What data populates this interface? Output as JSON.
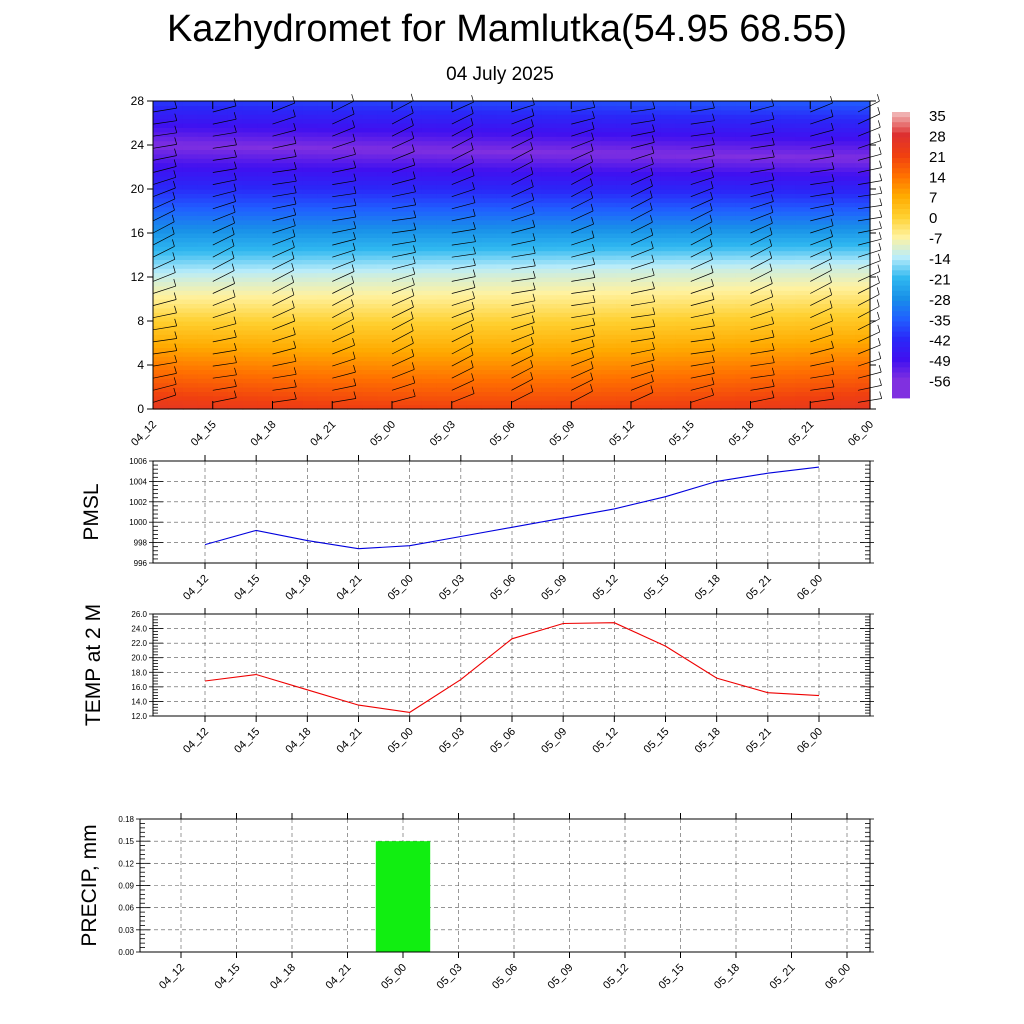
{
  "title": "Kazhydromet for Mamlutka(54.95 68.55)",
  "subtitle": "04 July 2025",
  "time_labels": [
    "04_12",
    "04_15",
    "04_18",
    "04_21",
    "05_00",
    "05_03",
    "05_06",
    "05_09",
    "05_12",
    "05_15",
    "05_18",
    "05_21",
    "06_00"
  ],
  "chart_data": [
    {
      "type": "heatmap",
      "title": "",
      "xlabel": "",
      "ylabel": "",
      "x": [
        "04_12",
        "04_15",
        "04_18",
        "04_21",
        "05_00",
        "05_03",
        "05_06",
        "05_09",
        "05_12",
        "05_15",
        "05_18",
        "05_21",
        "06_00"
      ],
      "y_ticks": [
        0,
        4,
        8,
        12,
        16,
        20,
        24,
        28
      ],
      "ylim": [
        0,
        28
      ],
      "colorbar_labels": [
        "35",
        "28",
        "21",
        "14",
        "7",
        "0",
        "-7",
        "-14",
        "-21",
        "-28",
        "-35",
        "-42",
        "-49",
        "-56"
      ],
      "colorbar_colors": [
        "#f0b0b0",
        "#dd3030",
        "#f04010",
        "#ff7000",
        "#ffaa00",
        "#ffd030",
        "#fff2a0",
        "#b8ecfa",
        "#30b8f0",
        "#1890e8",
        "#2060ff",
        "#2a28f8",
        "#4010f0",
        "#8030e0"
      ],
      "surface_temperature_range": [
        14,
        28
      ],
      "freezing_level_km": 12.5,
      "tropopause_km": 24,
      "overlay": "wind barbs"
    },
    {
      "type": "line",
      "ylabel": "PMSL",
      "x": [
        "04_12",
        "04_15",
        "04_18",
        "04_21",
        "05_00",
        "05_03",
        "05_06",
        "05_09",
        "05_12",
        "05_15",
        "05_18",
        "05_21",
        "06_00"
      ],
      "values": [
        997.8,
        999.2,
        998.2,
        997.4,
        997.7,
        998.6,
        999.5,
        1000.4,
        1001.3,
        1002.5,
        1004.0,
        1004.8,
        1005.4
      ],
      "ylim": [
        996,
        1006
      ],
      "y_ticks": [
        "996",
        "998",
        "1000",
        "1002",
        "1004",
        "1006"
      ],
      "color": "#0000dd",
      "grid": true
    },
    {
      "type": "line",
      "ylabel": "TEMP at 2 M",
      "x": [
        "04_12",
        "04_15",
        "04_18",
        "04_21",
        "05_00",
        "05_03",
        "05_06",
        "05_09",
        "05_12",
        "05_15",
        "05_18",
        "05_21",
        "06_00"
      ],
      "values": [
        16.8,
        17.7,
        15.6,
        13.5,
        12.5,
        17.0,
        22.6,
        24.7,
        24.8,
        21.6,
        17.2,
        15.2,
        14.8
      ],
      "ylim": [
        12,
        26
      ],
      "y_ticks": [
        "12.0",
        "14.0",
        "16.0",
        "18.0",
        "20.0",
        "22.0",
        "24.0",
        "26.0"
      ],
      "color": "#ee0000",
      "grid": true
    },
    {
      "type": "bar",
      "ylabel": "PRECIP, mm",
      "categories": [
        "04_12",
        "04_15",
        "04_18",
        "04_21",
        "05_00",
        "05_03",
        "05_06",
        "05_09",
        "05_12",
        "05_15",
        "05_18",
        "05_21",
        "06_00"
      ],
      "values": [
        0,
        0,
        0,
        0,
        0.15,
        0,
        0,
        0,
        0,
        0,
        0,
        0,
        0
      ],
      "ylim": [
        0,
        0.18
      ],
      "y_ticks": [
        "0.00",
        "0.03",
        "0.06",
        "0.09",
        "0.12",
        "0.15",
        "0.18"
      ],
      "color": "#11ee11",
      "grid": true
    }
  ]
}
